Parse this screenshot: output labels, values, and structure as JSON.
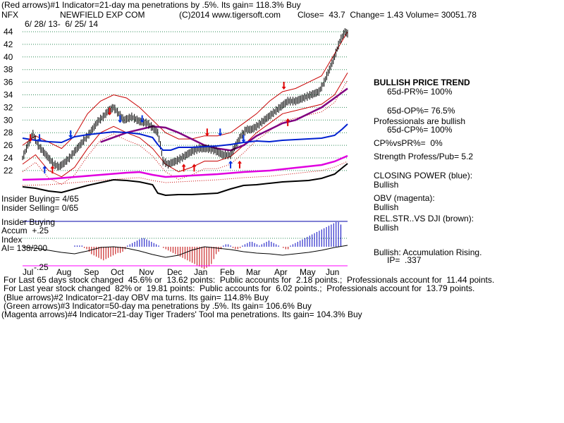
{
  "header": {
    "line1": "(Red arrows)#1 Indicator=21-day ma penetrations by .5%. Its gain= 118.3% Buy",
    "ticker": "NFX",
    "company": "NEWFIELD EXP COM",
    "copyright": "(C)2014 www.tigersoft.com",
    "quote": "Close=  43.7  Change= 1.43 Volume= 30051.78",
    "daterange": "6/ 28/ 13-  6/ 25/ 14"
  },
  "right_panel": {
    "trend": "BULLISH PRICE TREND",
    "pr": "65d-PR%= 100%",
    "op": "65d-OP%= 76.5%",
    "prof": "Professionals are bullish",
    "cp": "65d-CP%= 100%",
    "cpvspr": "CP%vsPR%=  0%",
    "strength": "Strength Profess/Pub= 5.2",
    "closing_power": "CLOSING POWER (blue):",
    "closing_power_val": "Bullish",
    "obv": "OBV (magenta):",
    "obv_val": "Bullish",
    "relstr": "REL.STR..VS DJI (brown):",
    "relstr_val": "Bullish",
    "accum": "Bullish: Accumulation Rising.",
    "ip": "IP=  .337"
  },
  "left_labels": {
    "insider_buying": "Insider Buying= 4/65",
    "insider_selling": "Insider Selling= 0/65",
    "insider_buying2": "Insider Buying",
    "accum": "Accum  +.25",
    "index": "Index",
    "ai": "AI= 138/200",
    "minus25": "-.25"
  },
  "footer": {
    "l1": "For Last 65 days stock changed  45.6% or  13.62 points:  Public accounts for  2.18 points.;  Professionals account for  11.44 points.",
    "l2": "For Last year stock changed  82% or  19.81 points:  Public accounts for  6.02 points.;  Professionals account for  13.79 points.",
    "l3": "(Blue arrows)#2 Indicator=21-day OBV ma turns. Its gain= 114.8% Buy",
    "l4": "(Green arrows)#3 Indicator=50-day ma penetrations by .5%. Its gain= 106.6% Buy",
    "l5": "(Magenta arrows)#4 Indicator=21-day Tiger Traders' Tool ma penetrations. Its gain= 104.3% Buy"
  },
  "colors": {
    "grid": "#2e8b57",
    "price": "#000000",
    "band": "#c80000",
    "ma50": "#800080",
    "closing_power": "#0020d0",
    "obv": "#e000e0",
    "relstr": "#000000",
    "accum_pos": "#0000c0",
    "accum_neg": "#c00000",
    "arrow_red": "#e00000",
    "arrow_blue": "#0030e0",
    "month_axis": "#ff00ff"
  },
  "chart_data": {
    "type": "line",
    "title": "NEWFIELD EXP COM",
    "y_ticks": [
      "22",
      "24",
      "26",
      "28",
      "30",
      "32",
      "34",
      "36",
      "38",
      "40",
      "42",
      "44"
    ],
    "ylim": [
      21,
      45
    ],
    "grid": true,
    "x_labels": [
      "Jul",
      "Aug",
      "Sep",
      "Oct",
      "Nov",
      "Dec",
      "Jan",
      "Feb",
      "Mar",
      "Apr",
      "May",
      "Jun"
    ],
    "price_close_monthly_approx": {
      "x": [
        "Jul",
        "Aug",
        "Sep",
        "Oct",
        "Nov",
        "Dec",
        "Jan",
        "Feb",
        "Mar",
        "Apr",
        "May",
        "Jun"
      ],
      "y": [
        24.5,
        25.0,
        25.0,
        29.0,
        30.5,
        23.5,
        25.5,
        27.0,
        31.0,
        32.5,
        35.0,
        43.7
      ]
    },
    "price_path": [
      [
        0,
        24
      ],
      [
        4,
        26
      ],
      [
        8,
        27.8
      ],
      [
        12,
        26
      ],
      [
        16,
        25
      ],
      [
        20,
        24
      ],
      [
        24,
        23
      ],
      [
        28,
        22.6
      ],
      [
        32,
        23.2
      ],
      [
        36,
        24
      ],
      [
        40,
        25
      ],
      [
        46,
        26.5
      ],
      [
        52,
        28
      ],
      [
        58,
        29.8
      ],
      [
        62,
        30.5
      ],
      [
        66,
        31.5
      ],
      [
        70,
        32
      ],
      [
        74,
        31
      ],
      [
        78,
        30
      ],
      [
        84,
        30.5
      ],
      [
        90,
        29.8
      ],
      [
        96,
        29.5
      ],
      [
        100,
        28.8
      ],
      [
        104,
        28
      ],
      [
        106,
        26
      ],
      [
        108,
        23.5
      ],
      [
        112,
        23
      ],
      [
        118,
        23.5
      ],
      [
        124,
        24.2
      ],
      [
        130,
        25
      ],
      [
        136,
        25.5
      ],
      [
        142,
        25.5
      ],
      [
        148,
        25.2
      ],
      [
        154,
        24.5
      ],
      [
        160,
        24.5
      ],
      [
        164,
        26
      ],
      [
        168,
        27.5
      ],
      [
        172,
        28.5
      ],
      [
        176,
        28.5
      ],
      [
        180,
        29
      ],
      [
        186,
        30
      ],
      [
        192,
        31
      ],
      [
        198,
        32
      ],
      [
        204,
        33
      ],
      [
        210,
        33
      ],
      [
        216,
        33.5
      ],
      [
        222,
        34
      ],
      [
        228,
        34.5
      ],
      [
        232,
        36
      ],
      [
        236,
        38
      ],
      [
        240,
        40
      ],
      [
        244,
        42.5
      ],
      [
        248,
        44
      ],
      [
        250,
        43.7
      ]
    ],
    "upper_band_path": [
      [
        0,
        26
      ],
      [
        10,
        27.5
      ],
      [
        20,
        26.5
      ],
      [
        30,
        25.5
      ],
      [
        40,
        27.5
      ],
      [
        50,
        31
      ],
      [
        60,
        33
      ],
      [
        70,
        34
      ],
      [
        80,
        33.5
      ],
      [
        90,
        32
      ],
      [
        100,
        30
      ],
      [
        110,
        28
      ],
      [
        120,
        27
      ],
      [
        130,
        27
      ],
      [
        140,
        27.5
      ],
      [
        150,
        27.5
      ],
      [
        160,
        28
      ],
      [
        170,
        29.5
      ],
      [
        180,
        31
      ],
      [
        190,
        33
      ],
      [
        200,
        34.5
      ],
      [
        210,
        35
      ],
      [
        220,
        36
      ],
      [
        230,
        37
      ],
      [
        240,
        40.5
      ],
      [
        250,
        44
      ]
    ],
    "lower_band_path": [
      [
        0,
        23
      ],
      [
        10,
        24.5
      ],
      [
        20,
        22
      ],
      [
        30,
        21
      ],
      [
        40,
        22.5
      ],
      [
        50,
        25.5
      ],
      [
        60,
        28
      ],
      [
        70,
        29
      ],
      [
        80,
        28
      ],
      [
        90,
        27.2
      ],
      [
        100,
        25.5
      ],
      [
        110,
        23
      ],
      [
        120,
        21.8
      ],
      [
        130,
        22.5
      ],
      [
        140,
        23.5
      ],
      [
        150,
        23.5
      ],
      [
        160,
        24.2
      ],
      [
        170,
        26
      ],
      [
        180,
        28
      ],
      [
        190,
        29.5
      ],
      [
        200,
        31
      ],
      [
        210,
        31.5
      ],
      [
        220,
        32
      ],
      [
        230,
        32.5
      ],
      [
        240,
        34
      ],
      [
        250,
        37.5
      ]
    ],
    "ma50_path": [
      [
        60,
        26.5
      ],
      [
        80,
        28
      ],
      [
        100,
        29
      ],
      [
        110,
        28.8
      ],
      [
        120,
        28
      ],
      [
        130,
        27
      ],
      [
        140,
        26
      ],
      [
        150,
        25.5
      ],
      [
        160,
        25.2
      ],
      [
        170,
        26
      ],
      [
        180,
        27.5
      ],
      [
        190,
        28.5
      ],
      [
        200,
        29.5
      ],
      [
        210,
        30
      ],
      [
        220,
        31
      ],
      [
        230,
        32
      ],
      [
        240,
        33.5
      ],
      [
        250,
        35
      ]
    ],
    "closing_power_path": [
      [
        0,
        71
      ],
      [
        10,
        74
      ],
      [
        20,
        76
      ],
      [
        30,
        77
      ],
      [
        40,
        69
      ],
      [
        50,
        66
      ],
      [
        60,
        64
      ],
      [
        70,
        62
      ],
      [
        80,
        63
      ],
      [
        90,
        65
      ],
      [
        100,
        70
      ],
      [
        104,
        80
      ],
      [
        108,
        88
      ],
      [
        114,
        88
      ],
      [
        120,
        84
      ],
      [
        130,
        84
      ],
      [
        140,
        83
      ],
      [
        150,
        82
      ],
      [
        160,
        80
      ],
      [
        170,
        77
      ],
      [
        180,
        75
      ],
      [
        190,
        76
      ],
      [
        200,
        74
      ],
      [
        210,
        73
      ],
      [
        220,
        72
      ],
      [
        230,
        71
      ],
      [
        240,
        67
      ],
      [
        246,
        58
      ],
      [
        250,
        51
      ]
    ],
    "obv_path": [
      [
        0,
        130
      ],
      [
        20,
        129
      ],
      [
        40,
        126
      ],
      [
        60,
        123
      ],
      [
        80,
        120
      ],
      [
        90,
        119
      ],
      [
        100,
        123
      ],
      [
        110,
        126
      ],
      [
        130,
        124
      ],
      [
        150,
        122
      ],
      [
        170,
        119
      ],
      [
        190,
        117
      ],
      [
        210,
        113
      ],
      [
        230,
        109
      ],
      [
        240,
        104
      ],
      [
        250,
        96
      ]
    ],
    "relstr_path": [
      [
        0,
        140
      ],
      [
        10,
        142
      ],
      [
        20,
        146
      ],
      [
        30,
        148
      ],
      [
        40,
        143
      ],
      [
        50,
        138
      ],
      [
        60,
        134
      ],
      [
        70,
        130
      ],
      [
        80,
        131
      ],
      [
        90,
        133
      ],
      [
        100,
        137
      ],
      [
        104,
        149
      ],
      [
        110,
        152
      ],
      [
        120,
        151
      ],
      [
        130,
        151
      ],
      [
        140,
        150
      ],
      [
        150,
        149
      ],
      [
        160,
        143
      ],
      [
        170,
        138
      ],
      [
        180,
        137
      ],
      [
        190,
        135
      ],
      [
        200,
        133
      ],
      [
        210,
        132
      ],
      [
        220,
        131
      ],
      [
        230,
        128
      ],
      [
        240,
        122
      ],
      [
        246,
        113
      ],
      [
        250,
        107
      ]
    ],
    "accum_index_bars": [
      0,
      0,
      0,
      0,
      0,
      0,
      0,
      0,
      0,
      0,
      0.05,
      0.05,
      0.05,
      0.05,
      -0.05,
      -0.1,
      -0.2,
      -0.3,
      -0.35,
      -0.4,
      -0.45,
      -0.5,
      -0.55,
      -0.5,
      -0.45,
      -0.4,
      -0.35,
      -0.3,
      -0.25,
      -0.25,
      -0.2,
      -0.1,
      0.05,
      0.1,
      0.15,
      0.2,
      0.25,
      0.3,
      0.35,
      0.35,
      0.3,
      0.25,
      0.2,
      0.15,
      0.1,
      0.05,
      0.0,
      -0.05,
      -0.1,
      -0.15,
      -0.2,
      -0.25,
      -0.3,
      -0.35,
      -0.4,
      -0.45,
      -0.5,
      -0.55,
      -0.6,
      -0.65,
      -0.7,
      -0.75,
      -0.8,
      -0.85,
      -0.9,
      -0.85,
      -0.8,
      -0.7,
      -0.5,
      -0.3,
      -0.2,
      -0.1,
      0.05,
      0.1,
      0.1,
      0.05,
      -0.05,
      -0.1,
      -0.1,
      -0.05,
      0.05,
      0.1,
      0.15,
      0.2,
      0.2,
      0.15,
      0.1,
      0.05,
      0.1,
      0.15,
      0.2,
      0.25,
      0.2,
      0.15,
      0.1,
      0.05,
      0.0,
      -0.05,
      -0.1,
      -0.1,
      0.05,
      0.1,
      0.15,
      0.2,
      0.25,
      0.3,
      0.35,
      0.4,
      0.45,
      0.5,
      0.55,
      0.6,
      0.65,
      0.7,
      0.75,
      0.8,
      0.85,
      0.9,
      0.95,
      1.0,
      1.0,
      0.9
    ],
    "accum_line_path": [
      [
        0,
        20
      ],
      [
        10,
        22
      ],
      [
        20,
        25
      ],
      [
        30,
        28
      ],
      [
        40,
        30
      ],
      [
        50,
        26
      ],
      [
        60,
        21
      ],
      [
        70,
        20
      ],
      [
        80,
        22
      ],
      [
        90,
        26
      ],
      [
        100,
        31
      ],
      [
        110,
        35
      ],
      [
        120,
        32
      ],
      [
        130,
        25
      ],
      [
        140,
        20
      ],
      [
        150,
        22
      ],
      [
        160,
        24
      ],
      [
        170,
        27
      ],
      [
        180,
        29
      ],
      [
        190,
        30
      ],
      [
        200,
        32
      ],
      [
        210,
        30
      ],
      [
        220,
        28
      ],
      [
        230,
        25
      ],
      [
        240,
        21
      ],
      [
        250,
        18
      ]
    ],
    "arrows": [
      {
        "x": 6,
        "y": 27.2,
        "dir": "down",
        "color": "red"
      },
      {
        "x": 13,
        "y": 27.2,
        "dir": "down",
        "color": "blue"
      },
      {
        "x": 17,
        "y": 22.1,
        "dir": "up",
        "color": "blue"
      },
      {
        "x": 23,
        "y": 22.1,
        "dir": "up",
        "color": "red"
      },
      {
        "x": 37,
        "y": 27.8,
        "dir": "down",
        "color": "blue"
      },
      {
        "x": 67,
        "y": 31.4,
        "dir": "down",
        "color": "red"
      },
      {
        "x": 75,
        "y": 30.2,
        "dir": "down",
        "color": "blue"
      },
      {
        "x": 92,
        "y": 30.2,
        "dir": "down",
        "color": "blue"
      },
      {
        "x": 124,
        "y": 22.4,
        "dir": "up",
        "color": "red"
      },
      {
        "x": 132,
        "y": 22.4,
        "dir": "up",
        "color": "red"
      },
      {
        "x": 142,
        "y": 28.1,
        "dir": "down",
        "color": "red"
      },
      {
        "x": 152,
        "y": 28.1,
        "dir": "down",
        "color": "blue"
      },
      {
        "x": 160,
        "y": 22.9,
        "dir": "up",
        "color": "blue"
      },
      {
        "x": 167,
        "y": 22.9,
        "dir": "up",
        "color": "red"
      },
      {
        "x": 170,
        "y": 27.1,
        "dir": "down",
        "color": "blue"
      },
      {
        "x": 201,
        "y": 35.5,
        "dir": "down",
        "color": "red"
      },
      {
        "x": 204,
        "y": 29.6,
        "dir": "up",
        "color": "red"
      }
    ]
  }
}
